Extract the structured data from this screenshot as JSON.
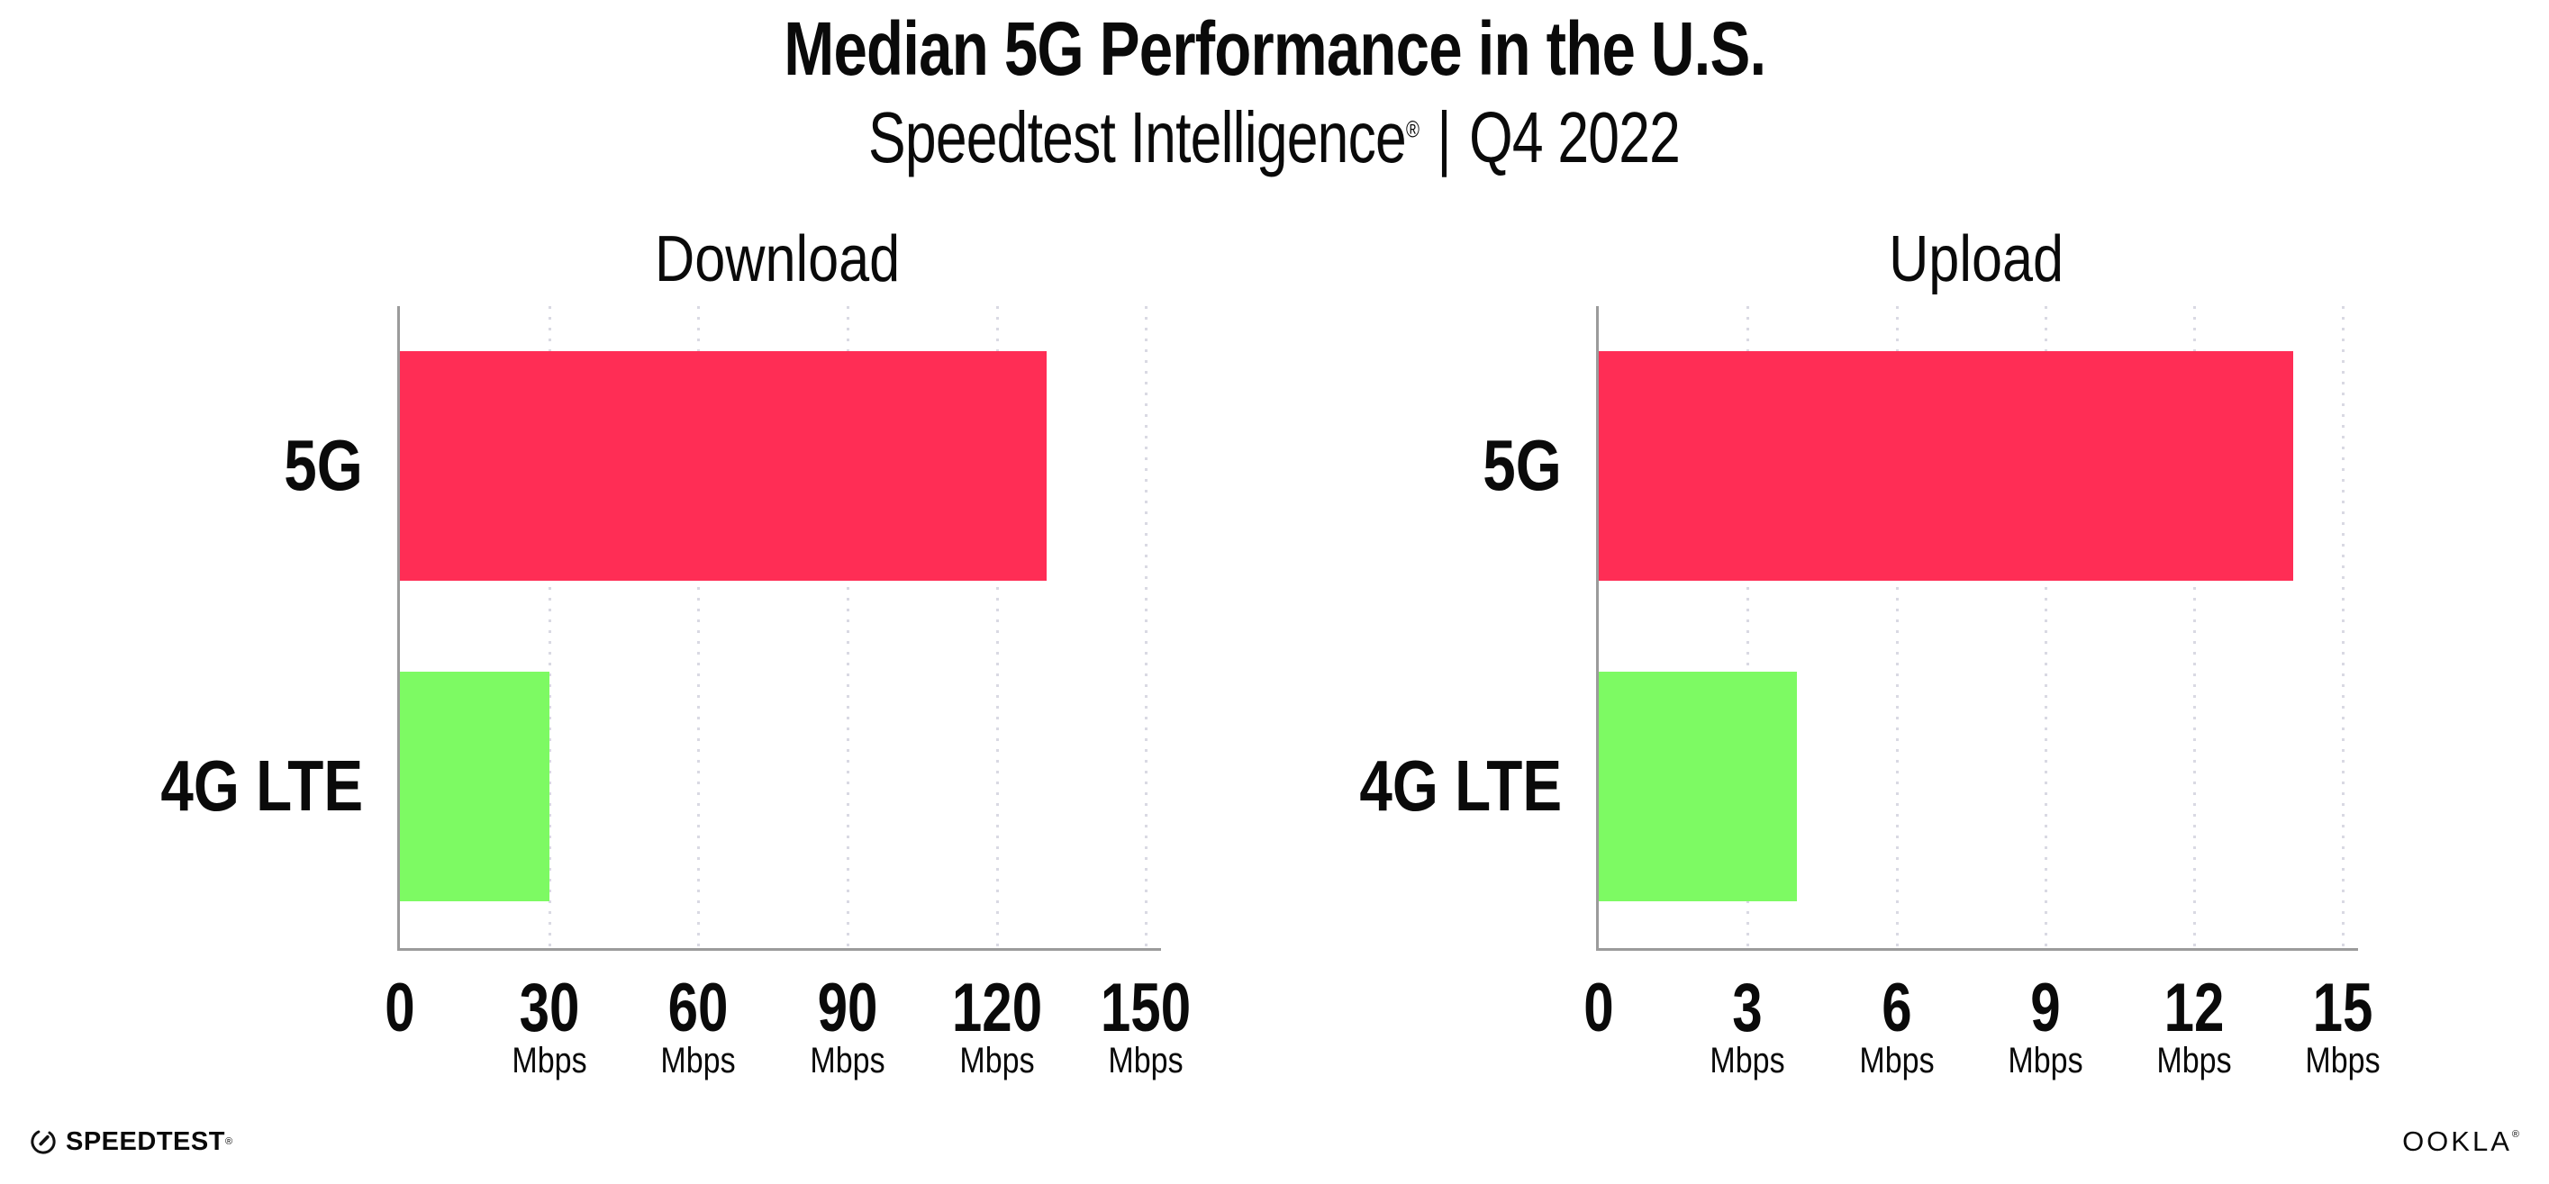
{
  "header": {
    "title": "Median 5G Performance in the U.S.",
    "subtitle_product": "Speedtest Intelligence",
    "subtitle_reg": "®",
    "subtitle_separator": "|",
    "subtitle_period": "Q4 2022"
  },
  "chart_data": [
    {
      "type": "bar",
      "orientation": "horizontal",
      "title": "Download",
      "categories": [
        "5G",
        "4G LTE"
      ],
      "values": [
        130,
        30
      ],
      "unit": "Mbps",
      "xlim": [
        0,
        150
      ],
      "ticks": [
        0,
        30,
        60,
        90,
        120,
        150
      ],
      "tick_unit_label": "Mbps",
      "bar_colors": [
        "#ff2d55",
        "#7dfa63"
      ],
      "grid": "vertical-dotted",
      "legend": "none"
    },
    {
      "type": "bar",
      "orientation": "horizontal",
      "title": "Upload",
      "categories": [
        "5G",
        "4G LTE"
      ],
      "values": [
        14,
        4
      ],
      "unit": "Mbps",
      "xlim": [
        0,
        15
      ],
      "ticks": [
        0,
        3,
        6,
        9,
        12,
        15
      ],
      "tick_unit_label": "Mbps",
      "bar_colors": [
        "#ff2d55",
        "#7dfa63"
      ],
      "grid": "vertical-dotted",
      "legend": "none"
    }
  ],
  "colors": {
    "bar_5g": "#ff2d55",
    "bar_4g_lte": "#7dfa63",
    "axis": "#9b9b9b",
    "gridline": "#d9d9e3",
    "text": "#0a0a0a",
    "background": "#ffffff"
  },
  "footer": {
    "speedtest_logo_text": "SPEEDTEST",
    "speedtest_trademark": "®",
    "ookla_logo_text": "OOKLA",
    "ookla_trademark": "®"
  }
}
